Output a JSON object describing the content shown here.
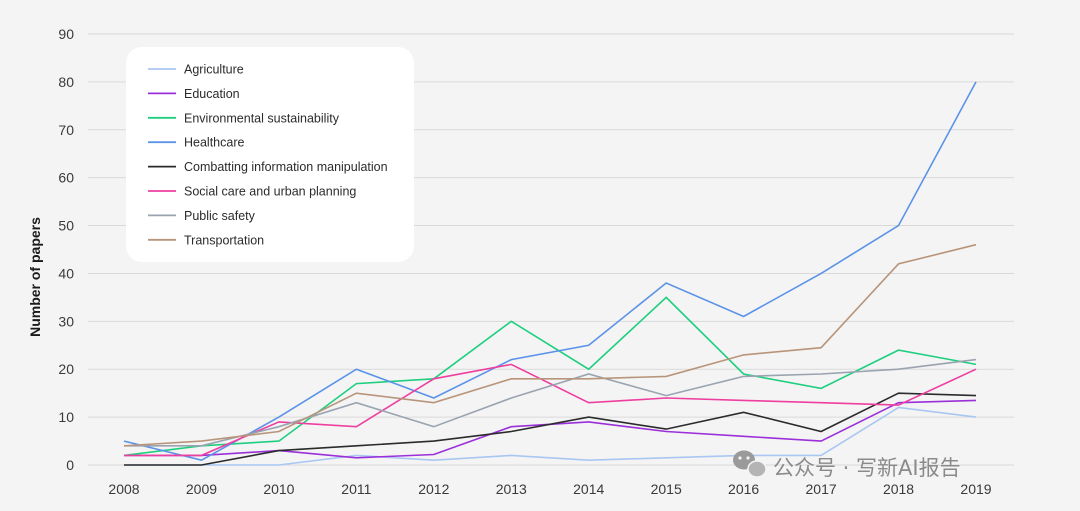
{
  "chart_data": {
    "type": "line",
    "title": "",
    "xlabel": "",
    "ylabel": "Number of papers",
    "categories": [
      "2008",
      "2009",
      "2010",
      "2011",
      "2012",
      "2013",
      "2014",
      "2015",
      "2016",
      "2017",
      "2018",
      "2019"
    ],
    "ylim": [
      0,
      90
    ],
    "yticks": [
      0,
      10,
      20,
      30,
      40,
      50,
      60,
      70,
      80,
      90
    ],
    "grid": true,
    "legend_position": "top-left",
    "series": [
      {
        "name": "Agriculture",
        "color": "#a9c7f2",
        "values": [
          0,
          0,
          0,
          2,
          1,
          2,
          1,
          1.5,
          2,
          2,
          12,
          10
        ]
      },
      {
        "name": "Education",
        "color": "#9b30d9",
        "values": [
          2,
          2,
          3,
          1.5,
          2.2,
          8,
          9,
          7,
          6,
          5,
          13,
          13.5
        ]
      },
      {
        "name": "Environmental sustainability",
        "color": "#1fcf7f",
        "values": [
          2,
          4,
          5,
          17,
          18,
          30,
          20,
          35,
          19,
          16,
          24,
          21
        ]
      },
      {
        "name": "Healthcare",
        "color": "#5b93e8",
        "values": [
          5,
          1,
          10,
          20,
          14,
          22,
          25,
          38,
          31,
          40,
          50,
          80
        ]
      },
      {
        "name": "Combatting information manipulation",
        "color": "#2b2b2b",
        "values": [
          0,
          0,
          3,
          4,
          5,
          7,
          10,
          7.5,
          11,
          7,
          15,
          14.5
        ]
      },
      {
        "name": "Social care and urban planning",
        "color": "#ee3fa0",
        "values": [
          2,
          2,
          9,
          8,
          18,
          21,
          13,
          14,
          13.5,
          13,
          12.5,
          20
        ]
      },
      {
        "name": "Public safety",
        "color": "#9aa3b0",
        "values": [
          4,
          4,
          8,
          13,
          8,
          14,
          19,
          14.5,
          18.5,
          19,
          20,
          22
        ]
      },
      {
        "name": "Transportation",
        "color": "#b8957a",
        "values": [
          4,
          5,
          7,
          15,
          13,
          18,
          18,
          18.5,
          23,
          24.5,
          42,
          46
        ]
      }
    ]
  },
  "watermark": {
    "text": "公众号 · 写新AI报告",
    "icon": "wechat-icon"
  }
}
